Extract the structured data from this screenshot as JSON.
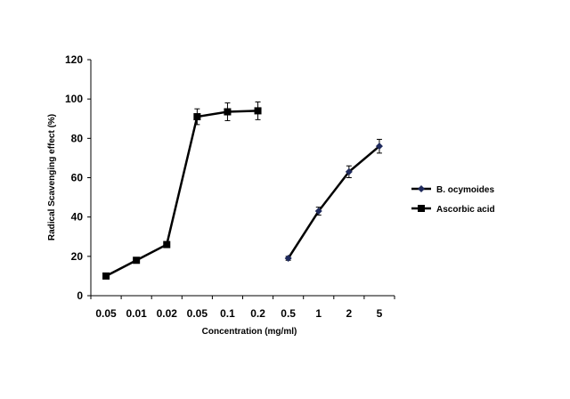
{
  "chart_data": {
    "type": "line",
    "title": "",
    "xlabel": "Concentration (mg/ml)",
    "ylabel": "Radical Scavenging effect (%)",
    "ylim": [
      0,
      120
    ],
    "yticks": [
      0,
      20,
      40,
      60,
      80,
      100,
      120
    ],
    "categories": [
      "0.05",
      "0.01",
      "0.02",
      "0.05",
      "0.1",
      "0.2",
      "0.5",
      "1",
      "2",
      "5"
    ],
    "grid": false,
    "legend_position": "right",
    "series": [
      {
        "name": "B. ocymoides",
        "marker": "diamond",
        "color": "#1f2a5c",
        "values": [
          null,
          null,
          null,
          null,
          null,
          null,
          19,
          43,
          63,
          76
        ],
        "errors": [
          null,
          null,
          null,
          null,
          null,
          null,
          1,
          2,
          3,
          3.5
        ]
      },
      {
        "name": "Ascorbic acid",
        "marker": "square",
        "color": "#000000",
        "values": [
          10,
          18,
          26,
          91,
          93.5,
          94,
          null,
          null,
          null,
          null
        ],
        "errors": [
          0,
          0,
          0,
          4,
          4.5,
          4.5,
          null,
          null,
          null,
          null
        ]
      }
    ]
  }
}
